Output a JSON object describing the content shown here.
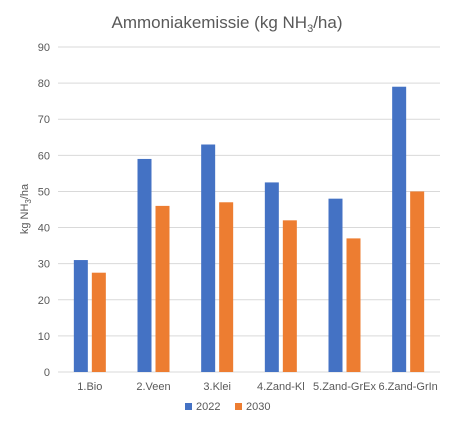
{
  "chart_data": {
    "type": "bar",
    "title_main": "Ammoniakemissie (kg NH",
    "title_sub": "3",
    "title_end": "/ha)",
    "ylabel_main": "kg NH",
    "ylabel_sub": "3",
    "ylabel_end": "/ha",
    "xlabel": "",
    "categories": [
      "1.Bio",
      "2.Veen",
      "3.Klei",
      "4.Zand-Kl",
      "5.Zand-GrEx",
      "6.Zand-GrIn"
    ],
    "series": [
      {
        "name": "2022",
        "color": "#4472C4",
        "values": [
          31,
          59,
          63,
          52.5,
          48,
          79
        ]
      },
      {
        "name": "2030",
        "color": "#ED7D31",
        "values": [
          27.5,
          46,
          47,
          42,
          37,
          50
        ]
      }
    ],
    "ylim": [
      0,
      90
    ],
    "yticks": [
      0,
      10,
      20,
      30,
      40,
      50,
      60,
      70,
      80,
      90
    ],
    "grid": true,
    "legend_position": "bottom"
  }
}
